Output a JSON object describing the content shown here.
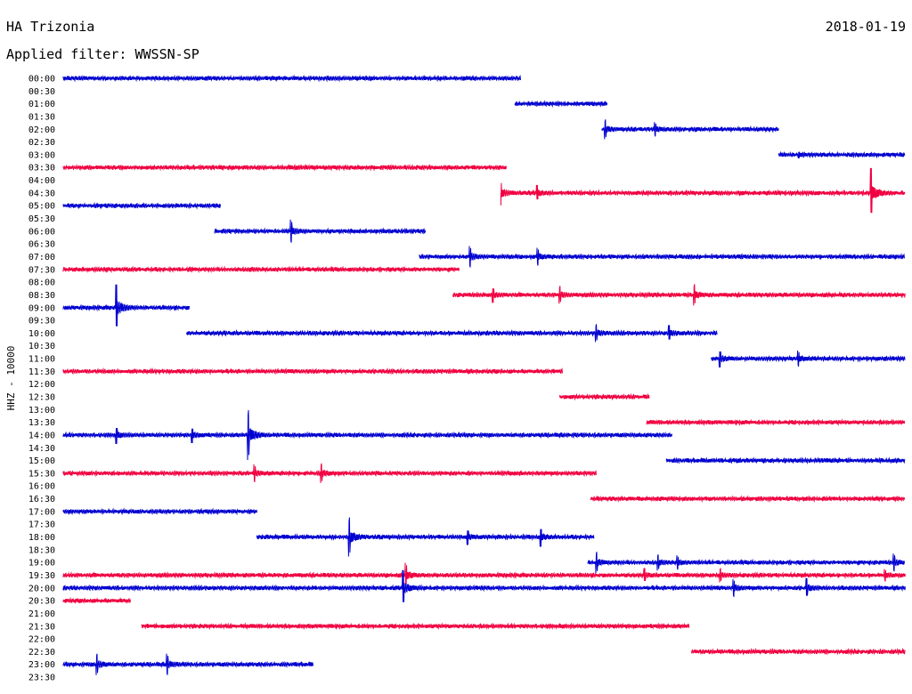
{
  "header": {
    "station": "HA Trizonia",
    "date": "2018-01-19",
    "filter": "Applied filter: WWSSN-SP"
  },
  "colors": {
    "even_trace": "#0000d0",
    "odd_trace": "#f00040"
  },
  "chart_data": {
    "type": "line",
    "title": "HA Trizonia",
    "ylabel": "HHZ - 10000",
    "row_labels": [
      "00:00",
      "00:30",
      "01:00",
      "01:30",
      "02:00",
      "02:30",
      "03:00",
      "03:30",
      "04:00",
      "04:30",
      "05:00",
      "05:30",
      "06:00",
      "06:30",
      "07:00",
      "07:30",
      "08:00",
      "08:30",
      "09:00",
      "09:30",
      "10:00",
      "10:30",
      "11:00",
      "11:30",
      "12:00",
      "12:30",
      "13:00",
      "13:30",
      "14:00",
      "14:30",
      "15:00",
      "15:30",
      "16:00",
      "16:30",
      "17:00",
      "17:30",
      "18:00",
      "18:30",
      "19:00",
      "19:30",
      "20:00",
      "20:30",
      "21:00",
      "21:30",
      "22:00",
      "22:30",
      "23:00",
      "23:30"
    ],
    "x_range_minutes": [
      0,
      30
    ],
    "traces": [
      {
        "row": 0,
        "start": 0.0,
        "end": 16.3
      },
      {
        "row": 2,
        "start": 16.1,
        "end": 19.4
      },
      {
        "row": 4,
        "start": 19.2,
        "end": 25.5
      },
      {
        "row": 6,
        "start": 25.5,
        "end": 30
      },
      {
        "row": 7,
        "start": 0.0,
        "end": 15.8
      },
      {
        "row": 9,
        "start": 15.6,
        "end": 30
      },
      {
        "row": 10,
        "start": 0.0,
        "end": 5.6
      },
      {
        "row": 12,
        "start": 5.4,
        "end": 12.9
      },
      {
        "row": 14,
        "start": 12.7,
        "end": 30
      },
      {
        "row": 15,
        "start": 0.0,
        "end": 14.1
      },
      {
        "row": 17,
        "start": 13.9,
        "end": 30
      },
      {
        "row": 18,
        "start": 0.0,
        "end": 4.5
      },
      {
        "row": 20,
        "start": 4.4,
        "end": 23.3
      },
      {
        "row": 22,
        "start": 23.1,
        "end": 30
      },
      {
        "row": 23,
        "start": 0.0,
        "end": 17.8
      },
      {
        "row": 25,
        "start": 17.7,
        "end": 20.9
      },
      {
        "row": 27,
        "start": 20.8,
        "end": 30
      },
      {
        "row": 28,
        "start": 0.0,
        "end": 21.7
      },
      {
        "row": 30,
        "start": 21.5,
        "end": 30
      },
      {
        "row": 31,
        "start": 0.0,
        "end": 19.0
      },
      {
        "row": 33,
        "start": 18.8,
        "end": 30
      },
      {
        "row": 34,
        "start": 0.0,
        "end": 6.9
      },
      {
        "row": 36,
        "start": 6.9,
        "end": 18.9
      },
      {
        "row": 38,
        "start": 18.7,
        "end": 30
      },
      {
        "row": 39,
        "start": 0.0,
        "end": 30
      },
      {
        "row": 40,
        "start": 0.0,
        "end": 30
      },
      {
        "row": 41,
        "start": 0.0,
        "end": 2.4
      },
      {
        "row": 43,
        "start": 2.8,
        "end": 22.3
      },
      {
        "row": 45,
        "start": 22.4,
        "end": 30
      },
      {
        "row": 46,
        "start": 0.0,
        "end": 8.9
      }
    ],
    "events": [
      {
        "row": 4,
        "at": 19.3,
        "amp": 11
      },
      {
        "row": 4,
        "at": 21.1,
        "amp": 8
      },
      {
        "row": 6,
        "at": 26.2,
        "amp": 4
      },
      {
        "row": 9,
        "at": 15.6,
        "amp": 14
      },
      {
        "row": 9,
        "at": 16.9,
        "amp": 9
      },
      {
        "row": 9,
        "at": 28.8,
        "amp": 28
      },
      {
        "row": 12,
        "at": 8.1,
        "amp": 13
      },
      {
        "row": 14,
        "at": 14.5,
        "amp": 12
      },
      {
        "row": 14,
        "at": 16.9,
        "amp": 10
      },
      {
        "row": 17,
        "at": 15.3,
        "amp": 9
      },
      {
        "row": 17,
        "at": 17.7,
        "amp": 10
      },
      {
        "row": 17,
        "at": 22.5,
        "amp": 12
      },
      {
        "row": 18,
        "at": 1.9,
        "amp": 26
      },
      {
        "row": 20,
        "at": 19.0,
        "amp": 10
      },
      {
        "row": 20,
        "at": 21.6,
        "amp": 9
      },
      {
        "row": 22,
        "at": 23.4,
        "amp": 10
      },
      {
        "row": 22,
        "at": 26.2,
        "amp": 9
      },
      {
        "row": 28,
        "at": 1.9,
        "amp": 10
      },
      {
        "row": 28,
        "at": 4.6,
        "amp": 9
      },
      {
        "row": 28,
        "at": 6.6,
        "amp": 28
      },
      {
        "row": 31,
        "at": 6.8,
        "amp": 10
      },
      {
        "row": 31,
        "at": 9.2,
        "amp": 11
      },
      {
        "row": 36,
        "at": 10.2,
        "amp": 22
      },
      {
        "row": 36,
        "at": 14.4,
        "amp": 9
      },
      {
        "row": 36,
        "at": 17.0,
        "amp": 11
      },
      {
        "row": 38,
        "at": 19.0,
        "amp": 12
      },
      {
        "row": 38,
        "at": 21.2,
        "amp": 9
      },
      {
        "row": 38,
        "at": 21.9,
        "amp": 8
      },
      {
        "row": 38,
        "at": 29.6,
        "amp": 10
      },
      {
        "row": 39,
        "at": 12.2,
        "amp": 14
      },
      {
        "row": 39,
        "at": 20.7,
        "amp": 8
      },
      {
        "row": 39,
        "at": 23.4,
        "amp": 8
      },
      {
        "row": 39,
        "at": 29.3,
        "amp": 7
      },
      {
        "row": 40,
        "at": 12.1,
        "amp": 20
      },
      {
        "row": 40,
        "at": 23.9,
        "amp": 10
      },
      {
        "row": 40,
        "at": 26.5,
        "amp": 11
      },
      {
        "row": 46,
        "at": 1.2,
        "amp": 12
      },
      {
        "row": 46,
        "at": 3.7,
        "amp": 12
      }
    ]
  }
}
